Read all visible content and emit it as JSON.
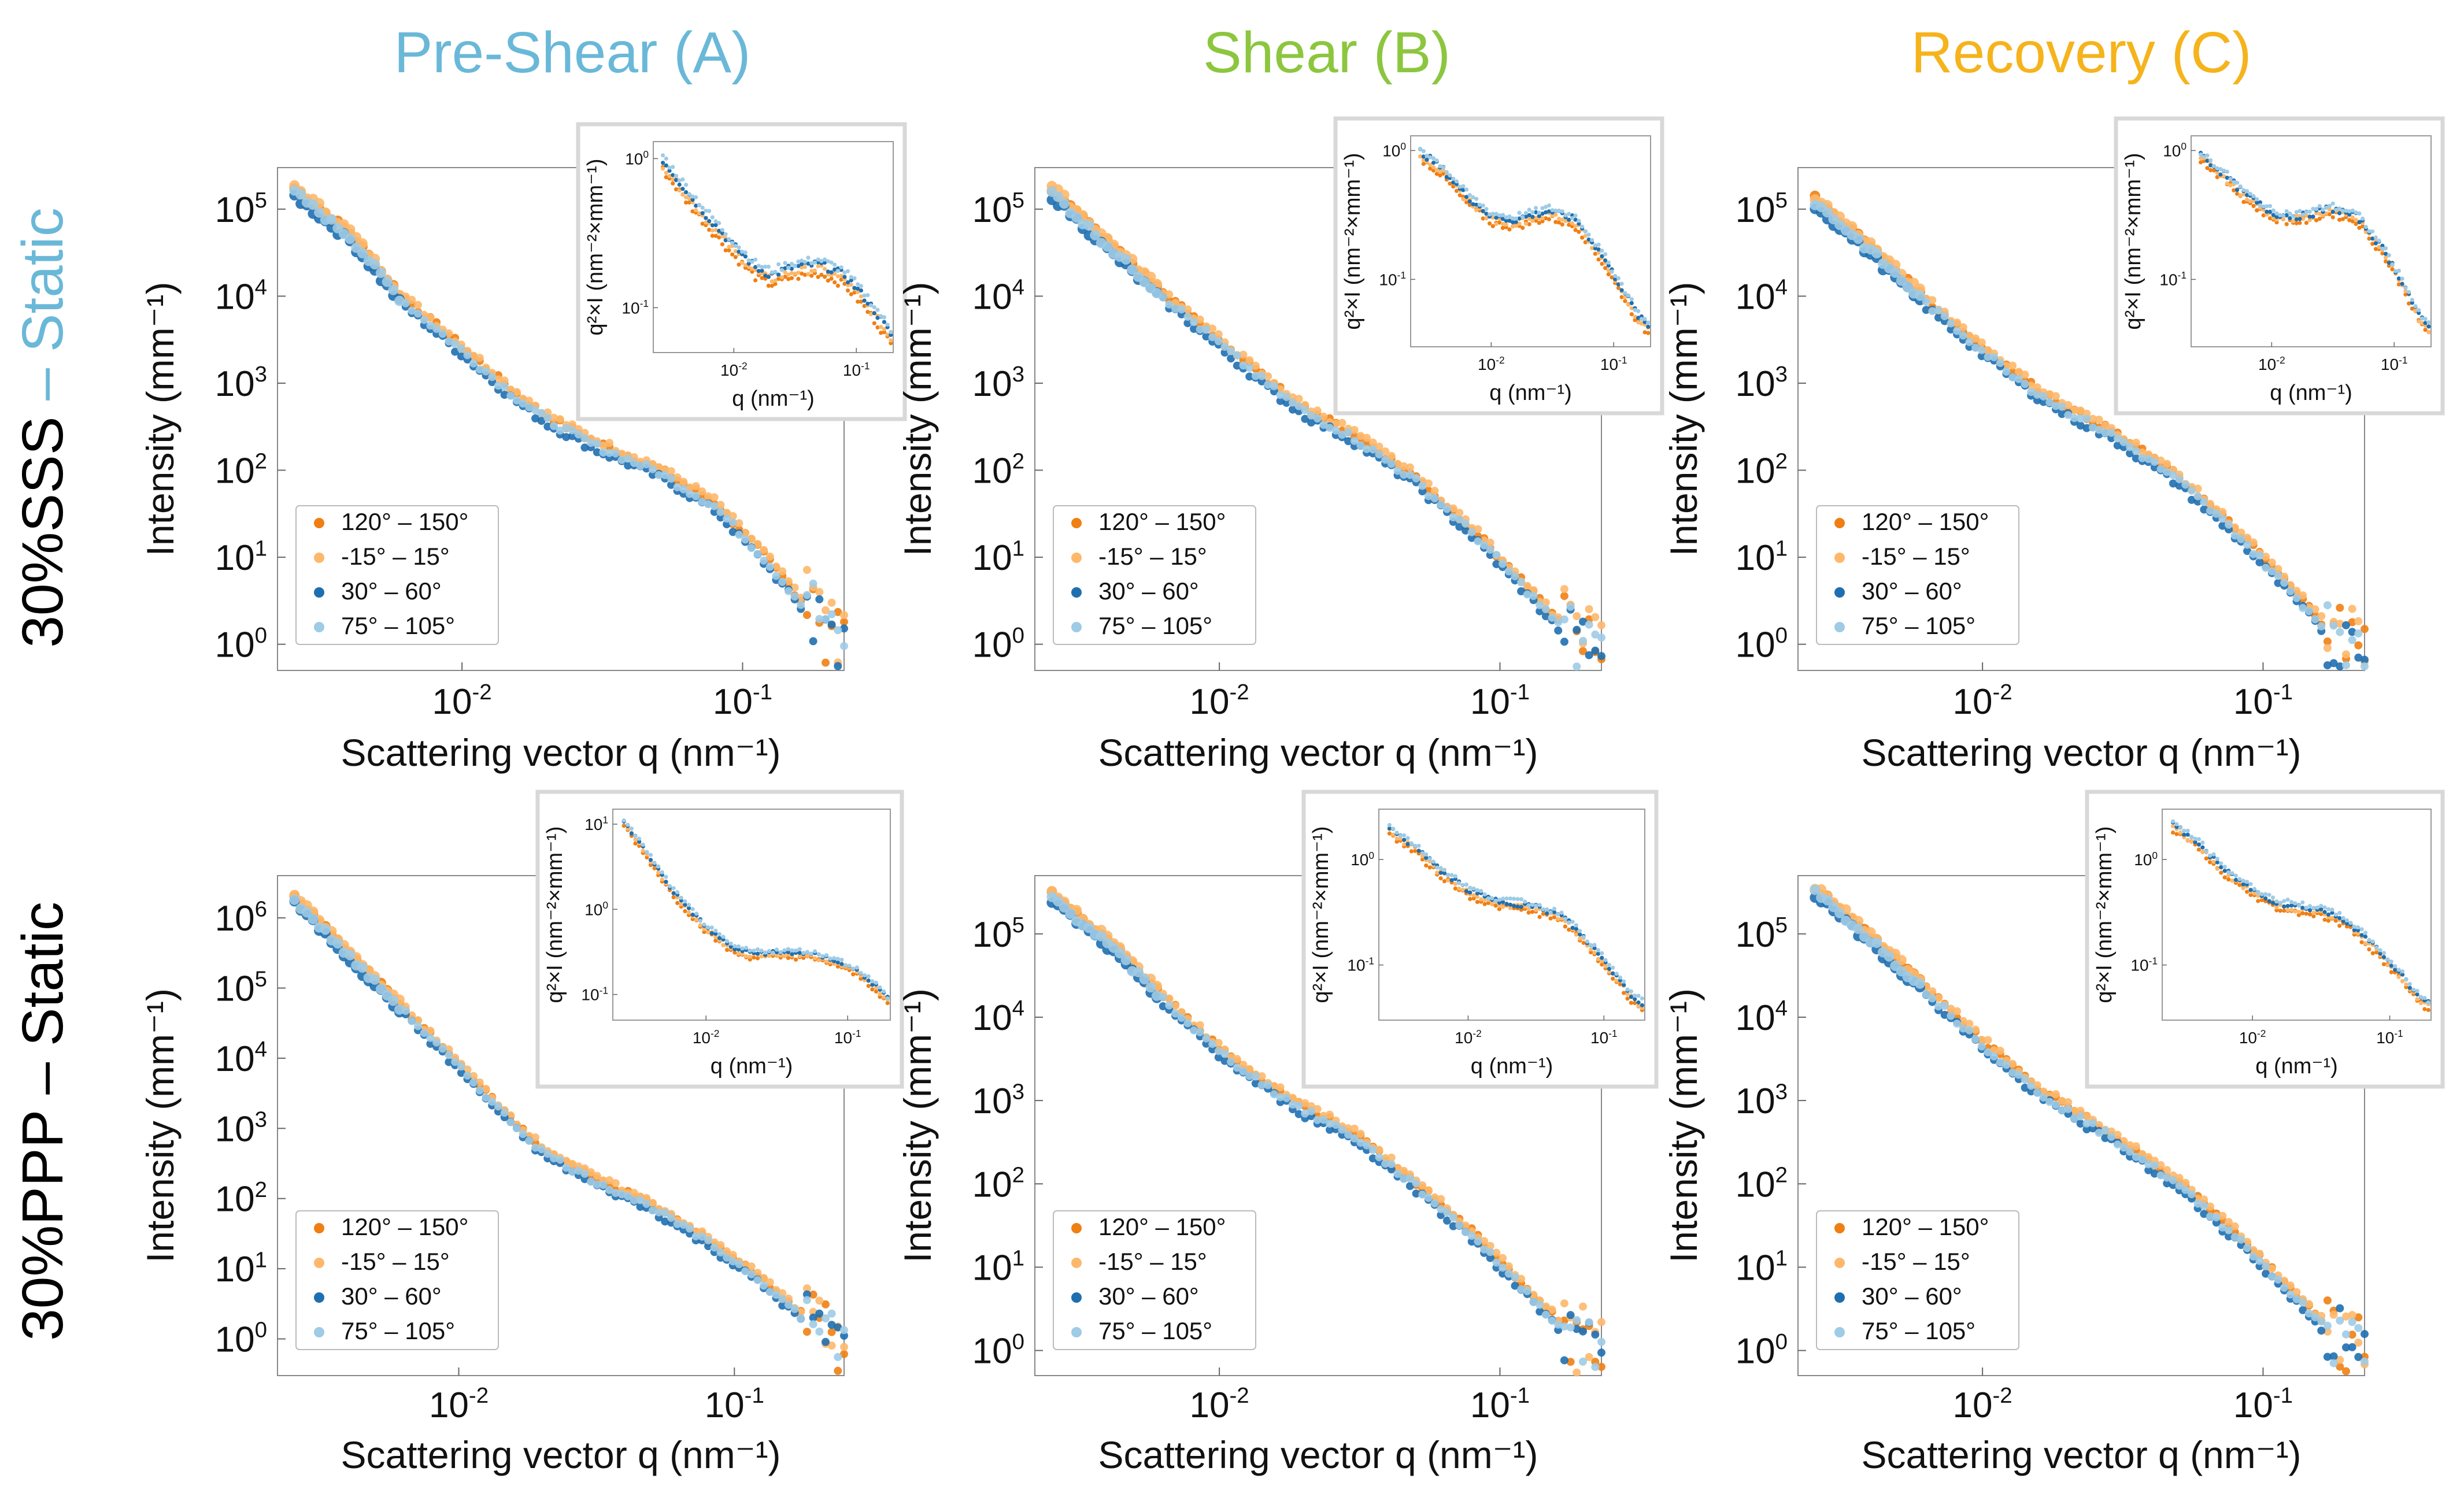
{
  "colors": {
    "pre_shear": "#6ab8d8",
    "shear": "#8cc63f",
    "recovery": "#f5b31c",
    "dash_blue": "#6ab8d8",
    "series": [
      "#f07f13",
      "#fdb86b",
      "#1f6fb0",
      "#9ecbe6"
    ]
  },
  "columns": [
    "Pre-Shear (A)",
    "Shear (B)",
    "Recovery (C)"
  ],
  "rows": [
    {
      "prefix": "30%SSS",
      "dash": " – ",
      "suffix": "Static"
    },
    {
      "prefix": "30%PPP",
      "dash": " – ",
      "suffix": "Static"
    }
  ],
  "chart_data": [
    {
      "id": "A-SSS",
      "type": "scatter",
      "row": 0,
      "col": 0,
      "xlabel": "Scattering vector q (nm⁻¹)",
      "ylabel": "Intensity (mm⁻¹)",
      "xscale": "log",
      "yscale": "log",
      "xlim": [
        0.0022,
        0.23
      ],
      "ylim": [
        0.5,
        300000
      ],
      "x_ticks": [
        "10-2",
        "10-1"
      ],
      "x_tick_values": [
        0.01,
        0.1
      ],
      "y_ticks": [
        "100",
        "101",
        "102",
        "103",
        "104",
        "105"
      ],
      "y_tick_values": [
        1,
        10,
        100,
        1000,
        10000,
        100000
      ],
      "legend": [
        "120° – 150°",
        "-15° – 15°",
        "30° – 60°",
        "75° – 105°"
      ],
      "curve": [
        [
          0.0025,
          170000
        ],
        [
          0.004,
          50000
        ],
        [
          0.006,
          10000
        ],
        [
          0.01,
          2500
        ],
        [
          0.015,
          800
        ],
        [
          0.02,
          400
        ],
        [
          0.03,
          200
        ],
        [
          0.05,
          100
        ],
        [
          0.08,
          40
        ],
        [
          0.12,
          10
        ],
        [
          0.18,
          2
        ],
        [
          0.23,
          0.7
        ]
      ],
      "inset": {
        "xlabel": "q (nm⁻¹)",
        "ylabel": "q²×I (nm⁻²×mm⁻¹)",
        "xlim": [
          0.0022,
          0.2
        ],
        "ylim": [
          0.05,
          1.3
        ],
        "x_ticks": [
          "10-2",
          "10-1"
        ],
        "x_tick_values": [
          0.01,
          0.1
        ],
        "y_ticks": [
          "10-1",
          "100"
        ],
        "y_tick_values": [
          0.1,
          1
        ],
        "curve": [
          [
            0.0025,
            1.0
          ],
          [
            0.004,
            0.6
          ],
          [
            0.006,
            0.4
          ],
          [
            0.01,
            0.25
          ],
          [
            0.015,
            0.18
          ],
          [
            0.02,
            0.16
          ],
          [
            0.03,
            0.18
          ],
          [
            0.05,
            0.19
          ],
          [
            0.08,
            0.16
          ],
          [
            0.12,
            0.11
          ],
          [
            0.16,
            0.08
          ],
          [
            0.2,
            0.06
          ]
        ],
        "spread": 0.12
      }
    },
    {
      "id": "B-SSS",
      "type": "scatter",
      "row": 0,
      "col": 1,
      "xlabel": "Scattering vector q (nm⁻¹)",
      "ylabel": "Intensity (mm⁻¹)",
      "xscale": "log",
      "yscale": "log",
      "xlim": [
        0.0022,
        0.23
      ],
      "ylim": [
        0.5,
        300000
      ],
      "x_ticks": [
        "10-2",
        "10-1"
      ],
      "x_tick_values": [
        0.01,
        0.1
      ],
      "y_ticks": [
        "100",
        "101",
        "102",
        "103",
        "104",
        "105"
      ],
      "y_tick_values": [
        1,
        10,
        100,
        1000,
        10000,
        100000
      ],
      "legend": [
        "120° – 150°",
        "-15° – 15°",
        "30° – 60°",
        "75° – 105°"
      ],
      "curve": [
        [
          0.0025,
          170000
        ],
        [
          0.004,
          40000
        ],
        [
          0.006,
          12000
        ],
        [
          0.01,
          3000
        ],
        [
          0.015,
          1000
        ],
        [
          0.02,
          500
        ],
        [
          0.03,
          250
        ],
        [
          0.05,
          80
        ],
        [
          0.08,
          20
        ],
        [
          0.12,
          5
        ],
        [
          0.18,
          1.2
        ],
        [
          0.23,
          0.6
        ]
      ],
      "inset": {
        "xlabel": "q (nm⁻¹)",
        "ylabel": "q²×I (nm⁻²×mm⁻¹)",
        "xlim": [
          0.0022,
          0.2
        ],
        "ylim": [
          0.03,
          1.3
        ],
        "x_ticks": [
          "10-2",
          "10-1"
        ],
        "x_tick_values": [
          0.01,
          0.1
        ],
        "y_ticks": [
          "10-1",
          "100"
        ],
        "y_tick_values": [
          0.1,
          1
        ],
        "curve": [
          [
            0.0025,
            1.0
          ],
          [
            0.004,
            0.7
          ],
          [
            0.006,
            0.45
          ],
          [
            0.01,
            0.3
          ],
          [
            0.015,
            0.28
          ],
          [
            0.02,
            0.3
          ],
          [
            0.03,
            0.33
          ],
          [
            0.05,
            0.28
          ],
          [
            0.08,
            0.15
          ],
          [
            0.12,
            0.08
          ],
          [
            0.16,
            0.05
          ],
          [
            0.2,
            0.04
          ]
        ],
        "spread": 0.1
      }
    },
    {
      "id": "C-SSS",
      "type": "scatter",
      "row": 0,
      "col": 2,
      "xlabel": "Scattering vector q (nm⁻¹)",
      "ylabel": "Intensity (mm⁻¹)",
      "xscale": "log",
      "yscale": "log",
      "xlim": [
        0.0022,
        0.23
      ],
      "ylim": [
        0.5,
        300000
      ],
      "x_ticks": [
        "10-2",
        "10-1"
      ],
      "x_tick_values": [
        0.01,
        0.1
      ],
      "y_ticks": [
        "100",
        "101",
        "102",
        "103",
        "104",
        "105"
      ],
      "y_tick_values": [
        1,
        10,
        100,
        1000,
        10000,
        100000
      ],
      "legend": [
        "120° – 150°",
        "-15° – 15°",
        "30° – 60°",
        "75° – 105°"
      ],
      "curve": [
        [
          0.0025,
          130000
        ],
        [
          0.004,
          35000
        ],
        [
          0.006,
          10000
        ],
        [
          0.01,
          2500
        ],
        [
          0.015,
          900
        ],
        [
          0.02,
          500
        ],
        [
          0.03,
          250
        ],
        [
          0.05,
          80
        ],
        [
          0.08,
          20
        ],
        [
          0.12,
          5
        ],
        [
          0.18,
          1.2
        ],
        [
          0.23,
          0.6
        ]
      ],
      "inset": {
        "xlabel": "q (nm⁻¹)",
        "ylabel": "q²×I (nm⁻²×mm⁻¹)",
        "xlim": [
          0.0022,
          0.2
        ],
        "ylim": [
          0.03,
          1.3
        ],
        "x_ticks": [
          "10-2",
          "10-1"
        ],
        "x_tick_values": [
          0.01,
          0.1
        ],
        "y_ticks": [
          "10-1",
          "100"
        ],
        "y_tick_values": [
          0.1,
          1
        ],
        "curve": [
          [
            0.0025,
            0.95
          ],
          [
            0.004,
            0.65
          ],
          [
            0.006,
            0.45
          ],
          [
            0.01,
            0.32
          ],
          [
            0.015,
            0.3
          ],
          [
            0.02,
            0.31
          ],
          [
            0.03,
            0.35
          ],
          [
            0.05,
            0.3
          ],
          [
            0.08,
            0.17
          ],
          [
            0.12,
            0.09
          ],
          [
            0.16,
            0.05
          ],
          [
            0.2,
            0.04
          ]
        ],
        "spread": 0.08
      }
    },
    {
      "id": "A-PPP",
      "type": "scatter",
      "row": 1,
      "col": 0,
      "xlabel": "Scattering vector q (nm⁻¹)",
      "ylabel": "Intensity (mm⁻¹)",
      "xscale": "log",
      "yscale": "log",
      "xlim": [
        0.0022,
        0.25
      ],
      "ylim": [
        0.3,
        4000000
      ],
      "x_ticks": [
        "10-2",
        "10-1"
      ],
      "x_tick_values": [
        0.01,
        0.1
      ],
      "y_ticks": [
        "100",
        "101",
        "102",
        "103",
        "104",
        "105",
        "106"
      ],
      "y_tick_values": [
        1,
        10,
        100,
        1000,
        10000,
        100000,
        1000000
      ],
      "legend": [
        "120° – 150°",
        "-15° – 15°",
        "30° – 60°",
        "75° – 105°"
      ],
      "curve": [
        [
          0.0025,
          2000000
        ],
        [
          0.004,
          300000
        ],
        [
          0.006,
          60000
        ],
        [
          0.01,
          8000
        ],
        [
          0.015,
          1500
        ],
        [
          0.02,
          500
        ],
        [
          0.03,
          200
        ],
        [
          0.05,
          80
        ],
        [
          0.08,
          25
        ],
        [
          0.12,
          8
        ],
        [
          0.18,
          2
        ],
        [
          0.25,
          0.6
        ]
      ],
      "inset": {
        "xlabel": "q (nm⁻¹)",
        "ylabel": "q²×I (nm⁻²×mm⁻¹)",
        "xlim": [
          0.0022,
          0.2
        ],
        "ylim": [
          0.05,
          15
        ],
        "x_ticks": [
          "10-2",
          "10-1"
        ],
        "x_tick_values": [
          0.01,
          0.1
        ],
        "y_ticks": [
          "10-1",
          "100",
          "101"
        ],
        "y_tick_values": [
          0.1,
          1,
          10
        ],
        "curve": [
          [
            0.0025,
            12
          ],
          [
            0.004,
            4
          ],
          [
            0.006,
            1.5
          ],
          [
            0.01,
            0.6
          ],
          [
            0.015,
            0.35
          ],
          [
            0.02,
            0.3
          ],
          [
            0.03,
            0.3
          ],
          [
            0.05,
            0.3
          ],
          [
            0.08,
            0.25
          ],
          [
            0.12,
            0.18
          ],
          [
            0.16,
            0.12
          ],
          [
            0.2,
            0.08
          ]
        ],
        "spread": 0.1
      }
    },
    {
      "id": "B-PPP",
      "type": "scatter",
      "row": 1,
      "col": 1,
      "xlabel": "Scattering vector q (nm⁻¹)",
      "ylabel": "Intensity (mm⁻¹)",
      "xscale": "log",
      "yscale": "log",
      "xlim": [
        0.0022,
        0.23
      ],
      "ylim": [
        0.5,
        500000
      ],
      "x_ticks": [
        "10-2",
        "10-1"
      ],
      "x_tick_values": [
        0.01,
        0.1
      ],
      "y_ticks": [
        "100",
        "101",
        "102",
        "103",
        "104",
        "105"
      ],
      "y_tick_values": [
        1,
        10,
        100,
        1000,
        10000,
        100000
      ],
      "legend": [
        "120° – 150°",
        "-15° – 15°",
        "30° – 60°",
        "75° – 105°"
      ],
      "curve": [
        [
          0.0025,
          300000
        ],
        [
          0.004,
          80000
        ],
        [
          0.006,
          20000
        ],
        [
          0.01,
          4000
        ],
        [
          0.015,
          1500
        ],
        [
          0.02,
          800
        ],
        [
          0.03,
          400
        ],
        [
          0.05,
          100
        ],
        [
          0.08,
          25
        ],
        [
          0.12,
          6
        ],
        [
          0.18,
          1.5
        ],
        [
          0.23,
          0.7
        ]
      ],
      "inset": {
        "xlabel": "q (nm⁻¹)",
        "ylabel": "q²×I (nm⁻²×mm⁻¹)",
        "xlim": [
          0.0022,
          0.2
        ],
        "ylim": [
          0.03,
          3
        ],
        "x_ticks": [
          "10-2",
          "10-1"
        ],
        "x_tick_values": [
          0.01,
          0.1
        ],
        "y_ticks": [
          "10-1",
          "100"
        ],
        "y_tick_values": [
          0.1,
          1
        ],
        "curve": [
          [
            0.0025,
            2
          ],
          [
            0.004,
            1.3
          ],
          [
            0.006,
            0.8
          ],
          [
            0.01,
            0.5
          ],
          [
            0.015,
            0.4
          ],
          [
            0.02,
            0.38
          ],
          [
            0.03,
            0.35
          ],
          [
            0.05,
            0.28
          ],
          [
            0.08,
            0.15
          ],
          [
            0.12,
            0.08
          ],
          [
            0.16,
            0.05
          ],
          [
            0.2,
            0.04
          ]
        ],
        "spread": 0.1
      }
    },
    {
      "id": "C-PPP",
      "type": "scatter",
      "row": 1,
      "col": 2,
      "xlabel": "Scattering vector q (nm⁻¹)",
      "ylabel": "Intensity (mm⁻¹)",
      "xscale": "log",
      "yscale": "log",
      "xlim": [
        0.0022,
        0.23
      ],
      "ylim": [
        0.5,
        500000
      ],
      "x_ticks": [
        "10-2",
        "10-1"
      ],
      "x_tick_values": [
        0.01,
        0.1
      ],
      "y_ticks": [
        "100",
        "101",
        "102",
        "103",
        "104",
        "105"
      ],
      "y_tick_values": [
        1,
        10,
        100,
        1000,
        10000,
        100000
      ],
      "legend": [
        "120° – 150°",
        "-15° – 15°",
        "30° – 60°",
        "75° – 105°"
      ],
      "curve": [
        [
          0.0025,
          350000
        ],
        [
          0.004,
          90000
        ],
        [
          0.006,
          25000
        ],
        [
          0.01,
          5000
        ],
        [
          0.015,
          1500
        ],
        [
          0.02,
          800
        ],
        [
          0.03,
          350
        ],
        [
          0.05,
          100
        ],
        [
          0.08,
          25
        ],
        [
          0.12,
          6
        ],
        [
          0.18,
          1.5
        ],
        [
          0.23,
          0.7
        ]
      ],
      "inset": {
        "xlabel": "q (nm⁻¹)",
        "ylabel": "q²×I (nm⁻²×mm⁻¹)",
        "xlim": [
          0.0022,
          0.2
        ],
        "ylim": [
          0.03,
          3
        ],
        "x_ticks": [
          "10-2",
          "10-1"
        ],
        "x_tick_values": [
          0.01,
          0.1
        ],
        "y_ticks": [
          "10-1",
          "100"
        ],
        "y_tick_values": [
          0.1,
          1
        ],
        "curve": [
          [
            0.0025,
            2.2
          ],
          [
            0.004,
            1.4
          ],
          [
            0.006,
            0.8
          ],
          [
            0.01,
            0.5
          ],
          [
            0.015,
            0.38
          ],
          [
            0.02,
            0.35
          ],
          [
            0.03,
            0.33
          ],
          [
            0.05,
            0.25
          ],
          [
            0.08,
            0.14
          ],
          [
            0.12,
            0.08
          ],
          [
            0.16,
            0.05
          ],
          [
            0.2,
            0.04
          ]
        ],
        "spread": 0.1
      }
    }
  ]
}
